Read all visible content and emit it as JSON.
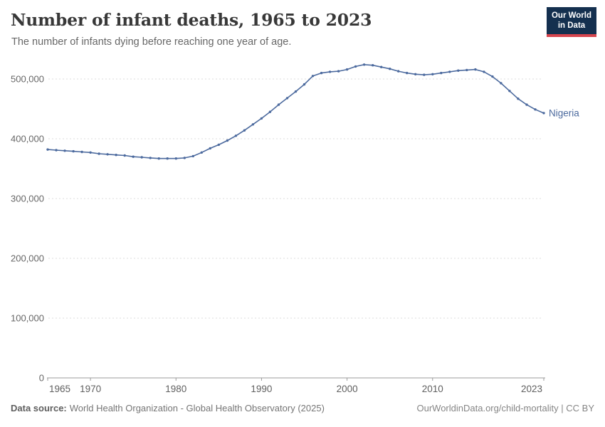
{
  "header": {
    "title": "Number of infant deaths, 1965 to 2023",
    "subtitle": "The number of infants dying before reaching one year of age.",
    "logo": {
      "line1": "Our World",
      "line2": "in Data"
    }
  },
  "chart_data": {
    "type": "line",
    "title": "Number of infant deaths, 1965 to 2023",
    "xlabel": "",
    "ylabel": "",
    "xlim": [
      1965,
      2023
    ],
    "ylim": [
      0,
      560000
    ],
    "grid": "horizontal-dashed",
    "legend_position": "end-of-line-label",
    "x_ticks": [
      1965,
      1970,
      1980,
      1990,
      2000,
      2010,
      2023
    ],
    "y_ticks": [
      0,
      100000,
      200000,
      300000,
      400000,
      500000
    ],
    "y_tick_labels": [
      "0",
      "100,000",
      "200,000",
      "300,000",
      "400,000",
      "500,000"
    ],
    "x": [
      1965,
      1966,
      1967,
      1968,
      1969,
      1970,
      1971,
      1972,
      1973,
      1974,
      1975,
      1976,
      1977,
      1978,
      1979,
      1980,
      1981,
      1982,
      1983,
      1984,
      1985,
      1986,
      1987,
      1988,
      1989,
      1990,
      1991,
      1992,
      1993,
      1994,
      1995,
      1996,
      1997,
      1998,
      1999,
      2000,
      2001,
      2002,
      2003,
      2004,
      2005,
      2006,
      2007,
      2008,
      2009,
      2010,
      2011,
      2012,
      2013,
      2014,
      2015,
      2016,
      2017,
      2018,
      2019,
      2020,
      2021,
      2022,
      2023
    ],
    "series": [
      {
        "name": "Nigeria",
        "color": "#4c6a9e",
        "values": [
          382000,
          381000,
          380000,
          379000,
          378000,
          377000,
          375000,
          374000,
          373000,
          372000,
          370000,
          369000,
          368000,
          367000,
          367000,
          367000,
          368000,
          371000,
          377000,
          384000,
          390000,
          397000,
          405000,
          414000,
          424000,
          434000,
          445000,
          457000,
          468000,
          479000,
          491000,
          505000,
          510000,
          512000,
          513000,
          516000,
          521000,
          524000,
          523000,
          520000,
          517000,
          513000,
          510000,
          508000,
          507000,
          508000,
          510000,
          512000,
          514000,
          515000,
          516000,
          512000,
          504000,
          493000,
          480000,
          467000,
          457000,
          449000,
          443000
        ]
      }
    ]
  },
  "footer": {
    "datasource_label": "Data source:",
    "datasource_text": "World Health Organization - Global Health Observatory (2025)",
    "link_text": "OurWorldinData.org/child-mortality | CC BY"
  },
  "colors": {
    "line": "#4c6a9e",
    "grid": "#dedede",
    "axis": "#9b9b9b",
    "axis_text": "#666666",
    "logo_bg": "#14304f",
    "logo_stripe": "#d6454e",
    "title_text": "#383838"
  }
}
